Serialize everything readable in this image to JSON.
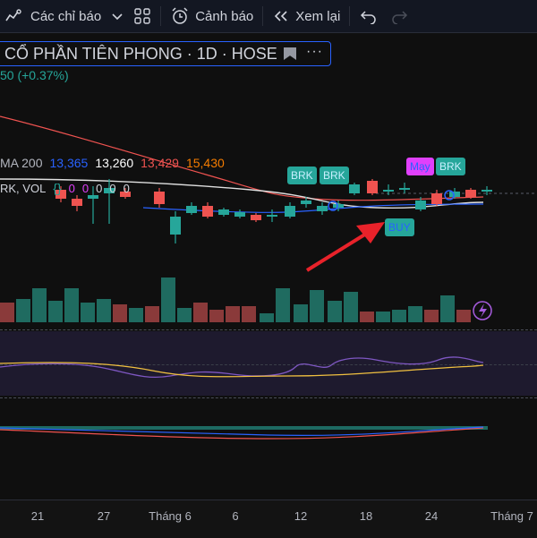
{
  "toolbar": {
    "indicators_label": "Các chỉ báo",
    "alerts_label": "Cảnh báo",
    "replay_label": "Xem lại"
  },
  "symbol": {
    "title": "CỔ PHẦN TIÊN PHONG · 1D · HOSE",
    "more": "···"
  },
  "price_change": "50 (+0.37%)",
  "ma": {
    "label": "MA 200",
    "values": [
      "13,365",
      "13,260",
      "13,429",
      "15,430"
    ],
    "colors": [
      "#2962ff",
      "#ffffff",
      "#ef5350",
      "#f57c00"
    ]
  },
  "vol_legend": {
    "label": "RK, VOL",
    "brace": "{}",
    "values": [
      "0",
      "0",
      "0",
      "0",
      "0"
    ],
    "colors": [
      "#e040fb",
      "#e040fb",
      "#d1d4dc",
      "#d1d4dc",
      "#d1d4dc"
    ]
  },
  "signals": {
    "brk1": "BRK",
    "brk2": "BRK",
    "may": "Mạy",
    "brk3": "BRK",
    "buy": "BUY"
  },
  "x_axis": [
    "21",
    "27",
    "Tháng 6",
    "6",
    "12",
    "18",
    "24",
    "Tháng 7"
  ],
  "colors": {
    "up": "#26a69a",
    "down": "#ef5350",
    "signal_green": "#26a69a",
    "signal_magenta": "#e040fb",
    "arrow": "#e8222a"
  },
  "candles": [
    {
      "o": 0,
      "h": 0,
      "l": 0,
      "c": 0,
      "v": 0
    }
  ]
}
